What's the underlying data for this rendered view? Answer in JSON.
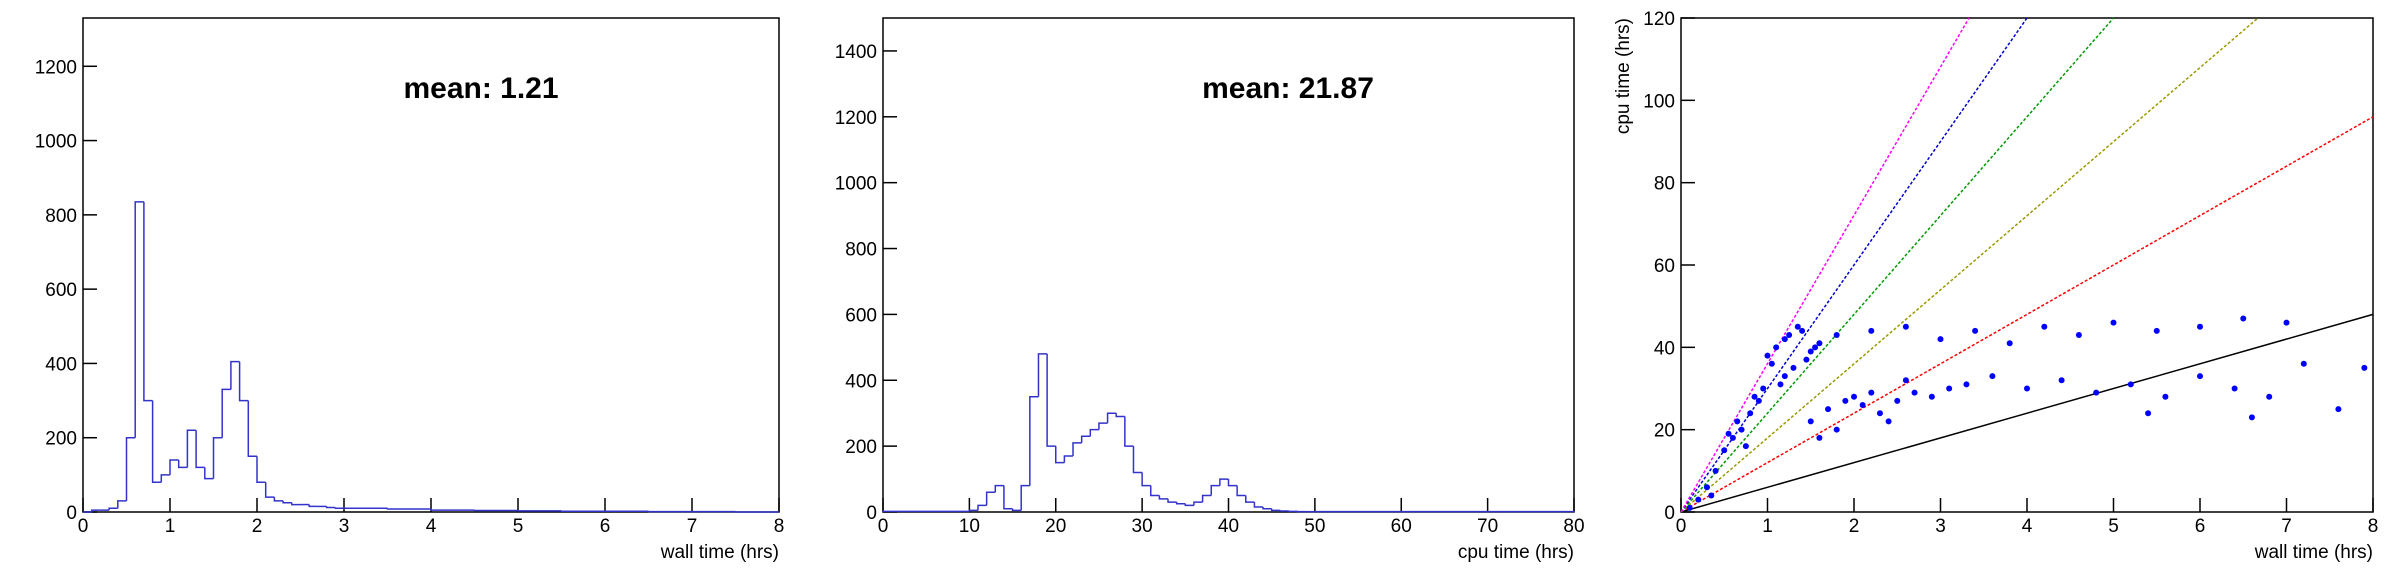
{
  "chart_data": [
    {
      "type": "histogram",
      "annotation": "mean: 1.21",
      "annotation_color": "#ff0000",
      "xlabel": "wall time (hrs)",
      "color": "#3333cc",
      "bins": [
        0,
        0.1,
        0.2,
        0.3,
        0.4,
        0.5,
        0.6,
        0.7,
        0.8,
        0.9,
        1.0,
        1.1,
        1.2,
        1.3,
        1.4,
        1.5,
        1.6,
        1.7,
        1.8,
        1.9,
        2.0,
        2.1,
        2.2,
        2.3,
        2.4,
        2.5,
        2.6,
        2.7,
        2.8,
        2.9,
        3.0,
        3.5,
        4,
        4.5,
        5,
        5.5,
        6,
        6.5,
        7,
        7.5,
        8
      ],
      "values": [
        0,
        5,
        5,
        10,
        30,
        200,
        835,
        300,
        80,
        100,
        140,
        120,
        220,
        120,
        90,
        200,
        330,
        405,
        300,
        150,
        80,
        40,
        30,
        25,
        20,
        20,
        15,
        15,
        12,
        10,
        10,
        8,
        5,
        4,
        3,
        2,
        2,
        1,
        1,
        0
      ],
      "xlim": [
        0,
        8
      ],
      "xticks": [
        0,
        1,
        2,
        3,
        4,
        5,
        6,
        7,
        8
      ],
      "ylim": [
        0,
        1330
      ],
      "yticks": [
        0,
        200,
        400,
        600,
        800,
        1000,
        1200
      ]
    },
    {
      "type": "histogram",
      "annotation": "mean: 21.87",
      "annotation_color": "#ff0000",
      "xlabel": "cpu time (hrs)",
      "color": "#3333cc",
      "bins": [
        0,
        10,
        11,
        12,
        13,
        14,
        15,
        16,
        17,
        18,
        19,
        20,
        21,
        22,
        23,
        24,
        25,
        26,
        27,
        28,
        29,
        30,
        31,
        32,
        33,
        34,
        35,
        36,
        37,
        38,
        39,
        40,
        41,
        42,
        43,
        44,
        45,
        46,
        47,
        48,
        49,
        50,
        80
      ],
      "values": [
        2,
        5,
        20,
        60,
        80,
        10,
        5,
        80,
        350,
        480,
        200,
        150,
        170,
        210,
        230,
        250,
        270,
        300,
        290,
        200,
        120,
        80,
        50,
        40,
        30,
        25,
        20,
        30,
        50,
        80,
        100,
        80,
        50,
        30,
        15,
        10,
        5,
        3,
        2,
        1,
        1,
        1
      ],
      "xlim": [
        0,
        80
      ],
      "xticks": [
        0,
        10,
        20,
        30,
        40,
        50,
        60,
        70,
        80
      ],
      "ylim": [
        0,
        1500
      ],
      "yticks": [
        0,
        200,
        400,
        600,
        800,
        1000,
        1200,
        1400
      ]
    },
    {
      "type": "scatter",
      "xlabel": "wall time (hrs)",
      "ylabel": "cpu time (hrs)",
      "series": [
        {
          "color": "#0000ff",
          "x": [
            1.0,
            1.1,
            1.2,
            1.3,
            1.4,
            1.5,
            1.6,
            1.2,
            1.05,
            1.35,
            1.45,
            1.25,
            1.15,
            1.55,
            0.5,
            0.6,
            0.7,
            0.8,
            0.9,
            0.65,
            0.75,
            0.85,
            0.55,
            0.95,
            1.5,
            1.7,
            1.9,
            2.0,
            2.1,
            2.2,
            1.8,
            2.3,
            2.5,
            2.7,
            2.9,
            3.1,
            3.3,
            2.4,
            1.6,
            2.6,
            1.8,
            2.2,
            2.6,
            3.0,
            3.4,
            3.8,
            4.2,
            4.6,
            5.0,
            5.5,
            6.0,
            6.5,
            7.0,
            3.6,
            4.0,
            4.4,
            4.8,
            5.2,
            5.6,
            6.0,
            6.4,
            6.8,
            7.2,
            7.6,
            7.9,
            5.4,
            6.6,
            0.1,
            0.2,
            0.3,
            0.4,
            0.35
          ],
          "values": [
            38,
            40,
            42,
            35,
            44,
            39,
            41,
            33,
            36,
            45,
            37,
            43,
            31,
            40,
            15,
            18,
            20,
            24,
            27,
            22,
            16,
            28,
            19,
            30,
            22,
            25,
            27,
            28,
            26,
            29,
            20,
            24,
            27,
            29,
            28,
            30,
            31,
            22,
            18,
            32,
            43,
            44,
            45,
            42,
            44,
            41,
            45,
            43,
            46,
            44,
            45,
            47,
            46,
            33,
            30,
            32,
            29,
            31,
            28,
            33,
            30,
            28,
            36,
            25,
            35,
            24,
            23,
            1,
            3,
            6,
            10,
            4
          ]
        }
      ],
      "lines": [
        {
          "color": "#000000",
          "x": [
            0,
            8
          ],
          "values": [
            0,
            48
          ]
        },
        {
          "color": "#ff0000",
          "x": [
            0,
            8
          ],
          "values": [
            0,
            96
          ]
        },
        {
          "color": "#999900",
          "x": [
            0,
            6.67
          ],
          "values": [
            0,
            120
          ]
        },
        {
          "color": "#009900",
          "x": [
            0,
            5
          ],
          "values": [
            0,
            120
          ]
        },
        {
          "color": "#0000cc",
          "x": [
            0,
            4
          ],
          "values": [
            0,
            120
          ]
        },
        {
          "color": "#ff00ff",
          "x": [
            0,
            3.33
          ],
          "values": [
            0,
            120
          ]
        }
      ],
      "xlim": [
        0,
        8
      ],
      "xticks": [
        0,
        1,
        2,
        3,
        4,
        5,
        6,
        7,
        8
      ],
      "ylim": [
        0,
        120
      ],
      "yticks": [
        0,
        20,
        40,
        60,
        80,
        100,
        120
      ]
    }
  ]
}
